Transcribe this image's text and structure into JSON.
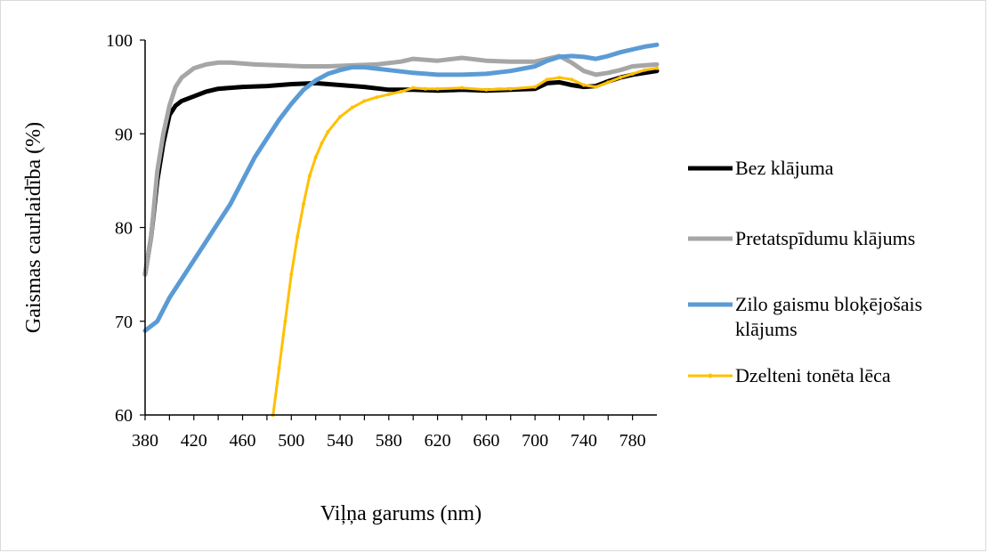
{
  "chart_data": {
    "type": "line",
    "xlabel": "Viļņa garums (nm)",
    "ylabel": "Gaismas  caurlaidība (%)",
    "xlim": [
      380,
      800
    ],
    "ylim": [
      60,
      100
    ],
    "x_ticks": [
      "380",
      "420",
      "460",
      "500",
      "540",
      "580",
      "620",
      "660",
      "700",
      "740",
      "780"
    ],
    "x_tick_values": [
      380,
      420,
      460,
      500,
      540,
      580,
      620,
      660,
      700,
      740,
      780
    ],
    "y_ticks": [
      "60",
      "70",
      "80",
      "90",
      "100"
    ],
    "y_tick_values": [
      60,
      70,
      80,
      90,
      100
    ],
    "grid": false,
    "legend_position": "right",
    "series": [
      {
        "name": "Bez klājuma",
        "color": "#000000",
        "marker": "none",
        "points": [
          [
            380,
            75
          ],
          [
            385,
            79
          ],
          [
            390,
            85
          ],
          [
            395,
            89
          ],
          [
            400,
            92
          ],
          [
            405,
            93
          ],
          [
            410,
            93.5
          ],
          [
            420,
            94
          ],
          [
            430,
            94.5
          ],
          [
            440,
            94.8
          ],
          [
            460,
            95
          ],
          [
            480,
            95.1
          ],
          [
            500,
            95.3
          ],
          [
            520,
            95.4
          ],
          [
            540,
            95.2
          ],
          [
            560,
            95.0
          ],
          [
            580,
            94.7
          ],
          [
            600,
            94.7
          ],
          [
            620,
            94.6
          ],
          [
            640,
            94.7
          ],
          [
            660,
            94.6
          ],
          [
            680,
            94.7
          ],
          [
            700,
            94.8
          ],
          [
            710,
            95.4
          ],
          [
            720,
            95.5
          ],
          [
            730,
            95.2
          ],
          [
            740,
            95.0
          ],
          [
            750,
            95.1
          ],
          [
            760,
            95.6
          ],
          [
            770,
            96.0
          ],
          [
            780,
            96.3
          ],
          [
            790,
            96.5
          ],
          [
            800,
            96.7
          ]
        ]
      },
      {
        "name": "Pretatspīdumu klājums",
        "color": "#a6a6a6",
        "marker": "none",
        "points": [
          [
            380,
            75
          ],
          [
            385,
            79
          ],
          [
            390,
            86
          ],
          [
            395,
            90
          ],
          [
            400,
            93
          ],
          [
            405,
            95
          ],
          [
            410,
            96
          ],
          [
            420,
            97
          ],
          [
            430,
            97.4
          ],
          [
            440,
            97.6
          ],
          [
            450,
            97.6
          ],
          [
            470,
            97.4
          ],
          [
            490,
            97.3
          ],
          [
            510,
            97.2
          ],
          [
            530,
            97.2
          ],
          [
            550,
            97.3
          ],
          [
            570,
            97.4
          ],
          [
            590,
            97.7
          ],
          [
            600,
            98.0
          ],
          [
            620,
            97.8
          ],
          [
            640,
            98.1
          ],
          [
            660,
            97.8
          ],
          [
            680,
            97.7
          ],
          [
            700,
            97.7
          ],
          [
            710,
            98.0
          ],
          [
            720,
            98.3
          ],
          [
            730,
            97.6
          ],
          [
            740,
            96.7
          ],
          [
            750,
            96.3
          ],
          [
            760,
            96.5
          ],
          [
            770,
            96.8
          ],
          [
            780,
            97.2
          ],
          [
            790,
            97.3
          ],
          [
            800,
            97.4
          ]
        ]
      },
      {
        "name": "Zilo gaismu bloķējošais klājums",
        "color": "#5b9bd5",
        "marker": "none",
        "points": [
          [
            380,
            69
          ],
          [
            390,
            70
          ],
          [
            400,
            72.5
          ],
          [
            410,
            74.5
          ],
          [
            420,
            76.5
          ],
          [
            430,
            78.5
          ],
          [
            440,
            80.5
          ],
          [
            450,
            82.5
          ],
          [
            460,
            85
          ],
          [
            470,
            87.5
          ],
          [
            480,
            89.5
          ],
          [
            490,
            91.5
          ],
          [
            500,
            93.2
          ],
          [
            510,
            94.7
          ],
          [
            520,
            95.7
          ],
          [
            530,
            96.4
          ],
          [
            540,
            96.8
          ],
          [
            550,
            97.1
          ],
          [
            560,
            97.1
          ],
          [
            580,
            96.8
          ],
          [
            600,
            96.5
          ],
          [
            620,
            96.3
          ],
          [
            640,
            96.3
          ],
          [
            660,
            96.4
          ],
          [
            680,
            96.7
          ],
          [
            700,
            97.2
          ],
          [
            710,
            97.8
          ],
          [
            720,
            98.2
          ],
          [
            730,
            98.3
          ],
          [
            740,
            98.2
          ],
          [
            750,
            98.0
          ],
          [
            760,
            98.3
          ],
          [
            770,
            98.7
          ],
          [
            780,
            99.0
          ],
          [
            790,
            99.3
          ],
          [
            800,
            99.5
          ]
        ]
      },
      {
        "name": "Dzelteni tonēta lēca",
        "color": "#ffc000",
        "marker": "dot",
        "points": [
          [
            485,
            60
          ],
          [
            490,
            65
          ],
          [
            495,
            70
          ],
          [
            500,
            75
          ],
          [
            505,
            79
          ],
          [
            510,
            82.5
          ],
          [
            515,
            85.5
          ],
          [
            520,
            87.5
          ],
          [
            525,
            89
          ],
          [
            530,
            90.2
          ],
          [
            540,
            91.8
          ],
          [
            550,
            92.8
          ],
          [
            560,
            93.5
          ],
          [
            570,
            93.9
          ],
          [
            580,
            94.2
          ],
          [
            590,
            94.5
          ],
          [
            600,
            94.9
          ],
          [
            610,
            94.8
          ],
          [
            620,
            94.8
          ],
          [
            640,
            94.9
          ],
          [
            660,
            94.7
          ],
          [
            680,
            94.8
          ],
          [
            700,
            95.0
          ],
          [
            710,
            95.8
          ],
          [
            720,
            96.0
          ],
          [
            730,
            95.8
          ],
          [
            740,
            95.2
          ],
          [
            750,
            95.0
          ],
          [
            760,
            95.5
          ],
          [
            770,
            96.0
          ],
          [
            780,
            96.4
          ],
          [
            790,
            96.8
          ],
          [
            800,
            97.0
          ]
        ]
      }
    ]
  }
}
